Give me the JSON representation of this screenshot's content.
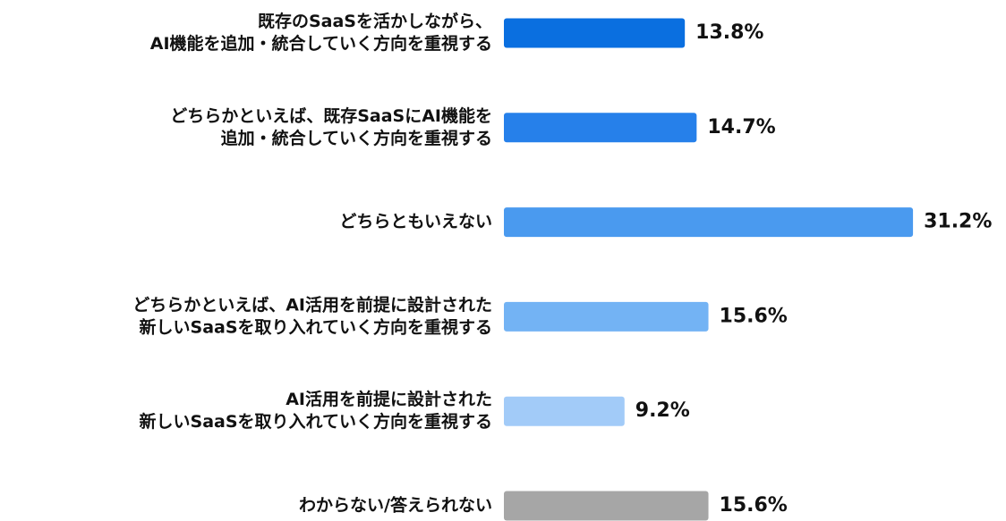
{
  "chart_data": {
    "type": "bar",
    "orientation": "horizontal",
    "categories": [
      [
        "既存のSaaSを活かしながら、",
        "AI機能を追加・統合していく方向を重視する"
      ],
      [
        "どちらかといえば、既存SaaSにAI機能を",
        "追加・統合していく方向を重視する"
      ],
      [
        "どちらともいえない"
      ],
      [
        "どちらかといえば、AI活用を前提に設計された",
        "新しいSaaSを取り入れていく方向を重視する"
      ],
      [
        "AI活用を前提に設計された",
        "新しいSaaSを取り入れていく方向を重視する"
      ],
      [
        "わからない/答えられない"
      ]
    ],
    "values": [
      13.8,
      14.7,
      31.2,
      15.6,
      9.2,
      15.6
    ],
    "value_labels": [
      "13.8%",
      "14.7%",
      "31.2%",
      "15.6%",
      "9.2%",
      "15.6%"
    ],
    "colors": [
      "#0a6fe0",
      "#2680ea",
      "#4a9aef",
      "#73b3f4",
      "#a2cbf8",
      "#a6a6a6"
    ]
  }
}
